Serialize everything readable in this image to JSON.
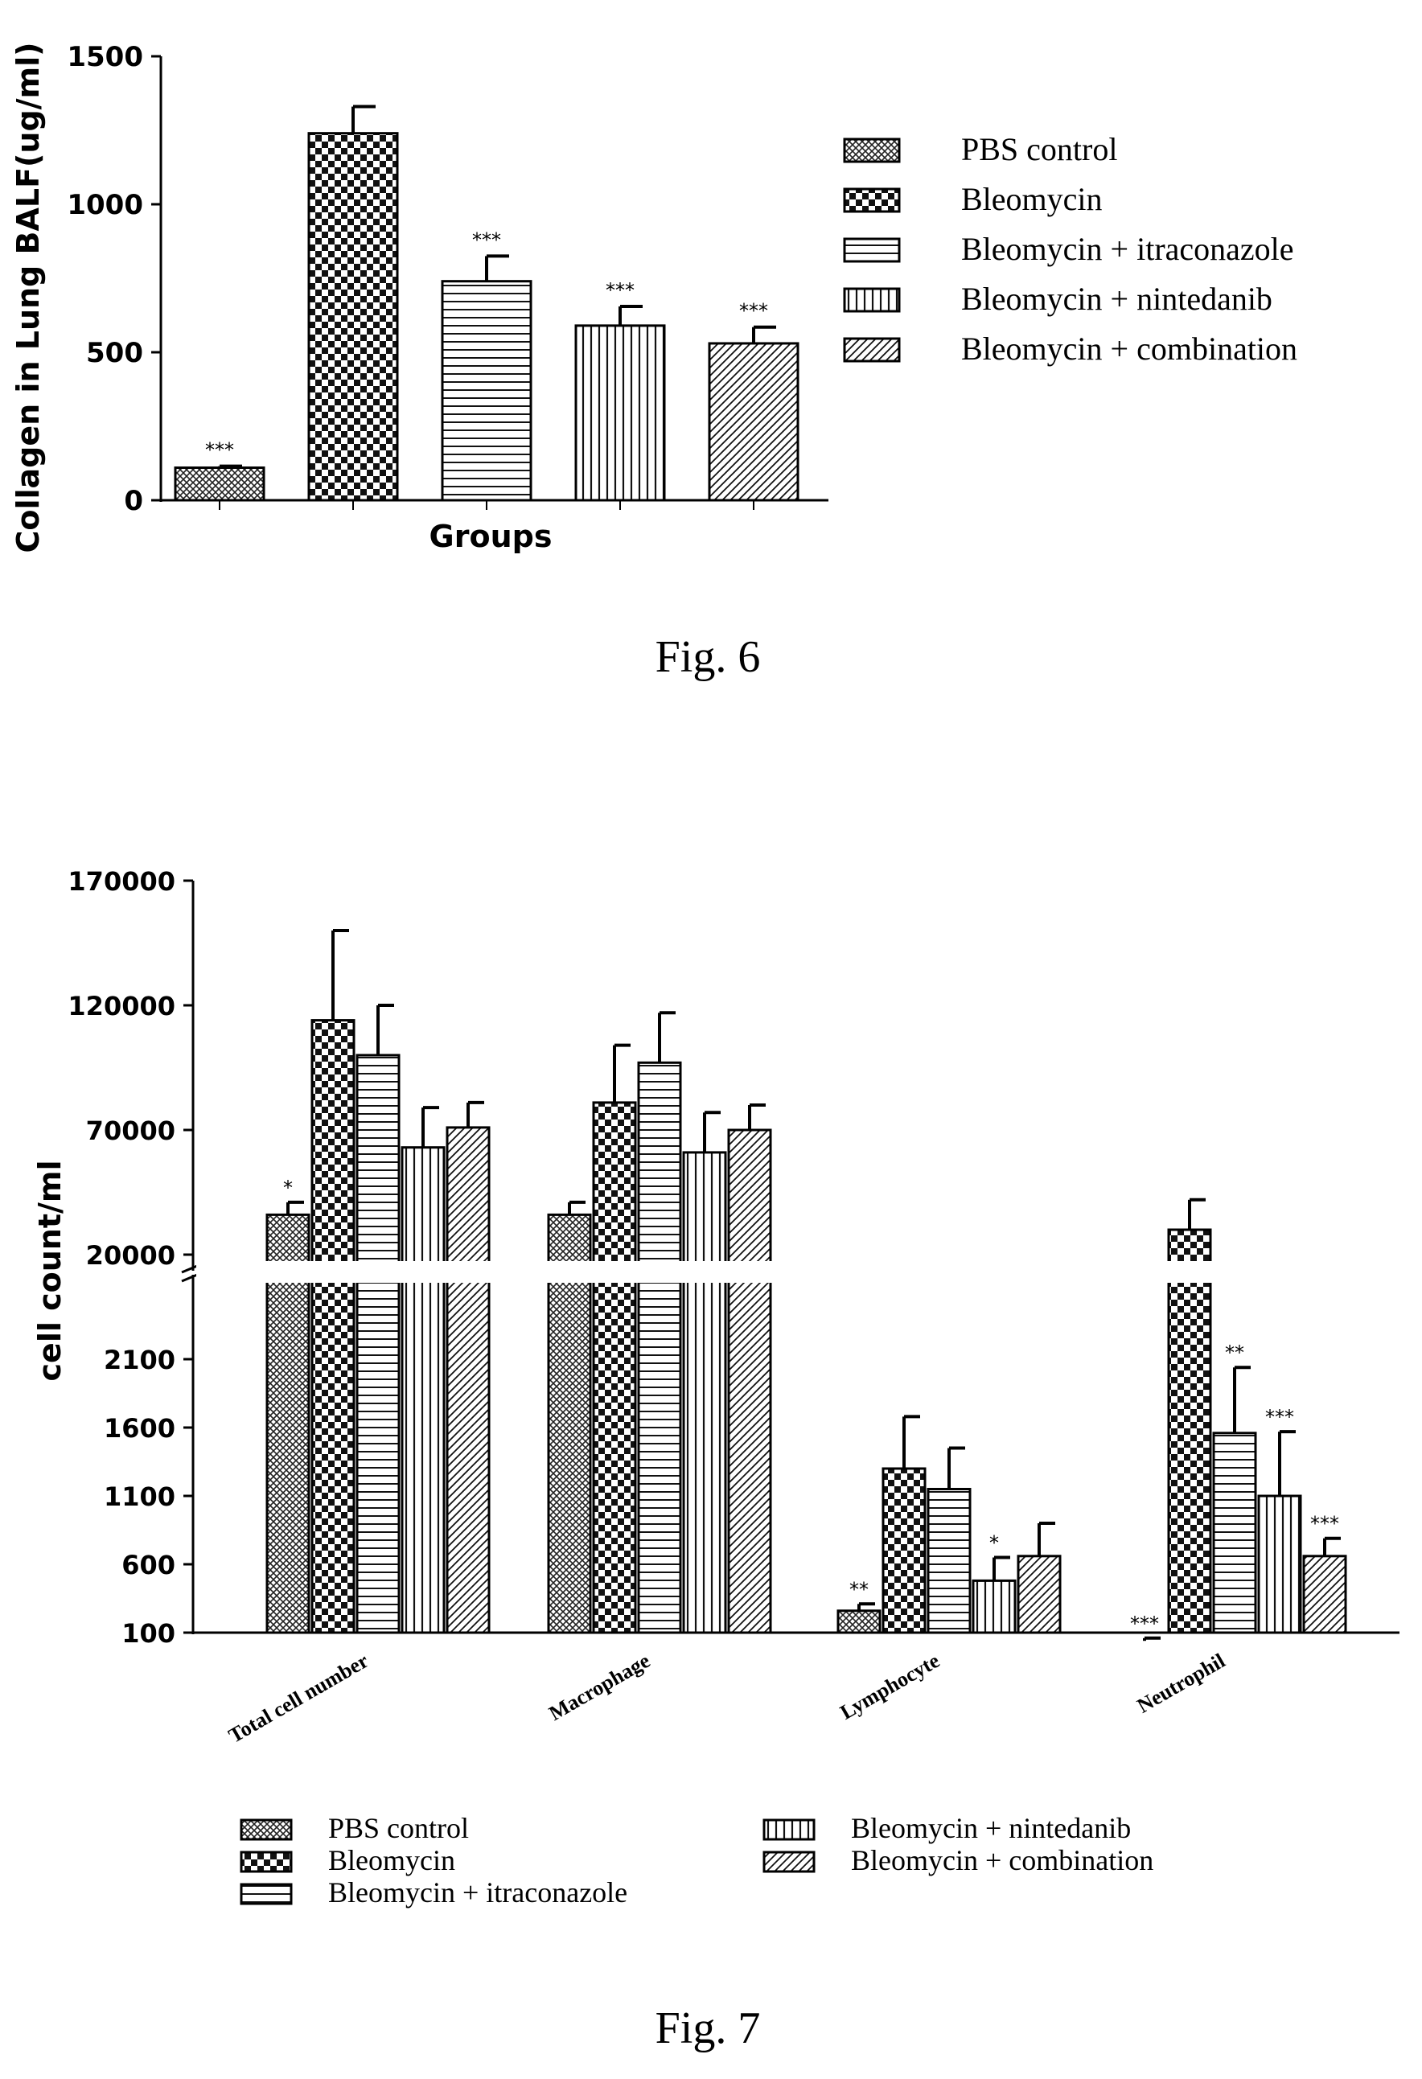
{
  "chart_data": [
    {
      "type": "bar",
      "caption": "Fig. 6",
      "xlabel": "Groups",
      "ylabel": "Collagen in Lung BALF(ug/ml)",
      "ylim": [
        0,
        1500
      ],
      "yticks": [
        "0",
        "500",
        "1000",
        "1500"
      ],
      "categories": [
        "PBS control",
        "Bleomycin",
        "Bleomycin + itraconazole",
        "Bleomycin + nintedanib",
        "Bleomycin + combination"
      ],
      "values": [
        110,
        1240,
        740,
        590,
        530
      ],
      "errors": [
        5,
        90,
        85,
        65,
        55
      ],
      "significance": [
        "***",
        "",
        "***",
        "***",
        "***"
      ],
      "legend": [
        "PBS control",
        "Bleomycin",
        "Bleomycin + itraconazole",
        "Bleomycin + nintedanib",
        "Bleomycin + combination"
      ],
      "legend_position": "right"
    },
    {
      "type": "bar",
      "caption": "Fig. 7",
      "ylabel": "cell count/ml",
      "axis_break": true,
      "upper_yticks": [
        "20000",
        "70000",
        "120000",
        "170000"
      ],
      "lower_yticks": [
        "100",
        "600",
        "1100",
        "1600",
        "2100"
      ],
      "upper_ylim": [
        20000,
        170000
      ],
      "lower_ylim": [
        100,
        2600
      ],
      "categories": [
        "Total cell number",
        "Macrophage",
        "Lymphocyte",
        "Neutrophil"
      ],
      "series": [
        {
          "name": "PBS control",
          "values": [
            36000,
            36000,
            260,
            40
          ],
          "errors": [
            5000,
            5000,
            50,
            20
          ],
          "significance": [
            "*",
            "",
            "**",
            "***"
          ]
        },
        {
          "name": "Bleomycin",
          "values": [
            114000,
            81000,
            1300,
            30000
          ],
          "errors": [
            36000,
            23000,
            380,
            12000
          ],
          "significance": [
            "",
            "",
            "",
            ""
          ]
        },
        {
          "name": "Bleomycin + itraconazole",
          "values": [
            100000,
            97000,
            1150,
            1560
          ],
          "errors": [
            20000,
            20000,
            300,
            480
          ],
          "significance": [
            "",
            "",
            "",
            "**"
          ]
        },
        {
          "name": "Bleomycin + nintedanib",
          "values": [
            63000,
            61000,
            480,
            1100
          ],
          "errors": [
            16000,
            16000,
            170,
            470
          ],
          "significance": [
            "",
            "",
            "*",
            "***"
          ]
        },
        {
          "name": "Bleomycin + combination",
          "values": [
            71000,
            70000,
            660,
            660
          ],
          "errors": [
            10000,
            10000,
            240,
            130
          ],
          "significance": [
            "",
            "",
            "",
            "***"
          ]
        }
      ],
      "legend_left": [
        "PBS control",
        "Bleomycin",
        "Bleomycin + itraconazole"
      ],
      "legend_right": [
        "Bleomycin + nintedanib",
        "Bleomycin + combination"
      ],
      "legend_position": "bottom"
    }
  ]
}
